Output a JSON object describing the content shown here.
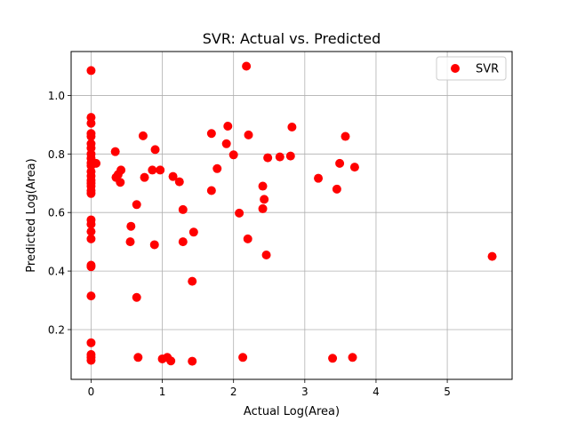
{
  "chart_data": {
    "type": "scatter",
    "title": "SVR: Actual vs. Predicted",
    "xlabel": "Actual Log(Area)",
    "ylabel": "Predicted Log(Area)",
    "xlim": [
      -0.28,
      5.91
    ],
    "ylim": [
      0.03,
      1.15
    ],
    "xticks": [
      0,
      1,
      2,
      3,
      4,
      5
    ],
    "xtick_labels": [
      "0",
      "1",
      "2",
      "3",
      "4",
      "5"
    ],
    "yticks": [
      0.2,
      0.4,
      0.6,
      0.8,
      1.0
    ],
    "ytick_labels": [
      "0.2",
      "0.4",
      "0.6",
      "0.8",
      "1.0"
    ],
    "grid": true,
    "legend": {
      "position": "top-right",
      "entries": [
        "SVR"
      ]
    },
    "series": [
      {
        "name": "SVR",
        "color": "#ff0000",
        "points": [
          [
            0,
            1.085
          ],
          [
            0,
            0.925
          ],
          [
            0,
            0.905
          ],
          [
            0,
            0.87
          ],
          [
            0,
            0.86
          ],
          [
            0,
            0.835
          ],
          [
            0,
            0.82
          ],
          [
            0,
            0.8
          ],
          [
            0,
            0.785
          ],
          [
            0,
            0.77
          ],
          [
            0,
            0.76
          ],
          [
            0,
            0.74
          ],
          [
            0,
            0.725
          ],
          [
            0,
            0.71
          ],
          [
            0,
            0.7
          ],
          [
            0,
            0.69
          ],
          [
            0,
            0.675
          ],
          [
            0,
            0.665
          ],
          [
            0,
            0.575
          ],
          [
            0,
            0.56
          ],
          [
            0,
            0.535
          ],
          [
            0,
            0.51
          ],
          [
            0,
            0.42
          ],
          [
            0,
            0.415
          ],
          [
            0,
            0.315
          ],
          [
            0,
            0.155
          ],
          [
            0,
            0.115
          ],
          [
            0,
            0.105
          ],
          [
            0,
            0.095
          ],
          [
            0.07,
            0.768
          ],
          [
            0.34,
            0.808
          ],
          [
            0.35,
            0.72
          ],
          [
            0.38,
            0.73
          ],
          [
            0.41,
            0.703
          ],
          [
            0.42,
            0.745
          ],
          [
            0.56,
            0.553
          ],
          [
            0.55,
            0.5
          ],
          [
            0.64,
            0.627
          ],
          [
            0.64,
            0.31
          ],
          [
            0.66,
            0.105
          ],
          [
            0.73,
            0.862
          ],
          [
            0.75,
            0.72
          ],
          [
            0.86,
            0.745
          ],
          [
            0.9,
            0.815
          ],
          [
            0.89,
            0.49
          ],
          [
            0.97,
            0.745
          ],
          [
            1.0,
            0.1
          ],
          [
            1.07,
            0.105
          ],
          [
            1.12,
            0.093
          ],
          [
            1.15,
            0.723
          ],
          [
            1.24,
            0.705
          ],
          [
            1.29,
            0.61
          ],
          [
            1.29,
            0.5
          ],
          [
            1.42,
            0.365
          ],
          [
            1.44,
            0.533
          ],
          [
            1.42,
            0.092
          ],
          [
            1.69,
            0.87
          ],
          [
            1.69,
            0.675
          ],
          [
            1.77,
            0.75
          ],
          [
            1.9,
            0.835
          ],
          [
            1.92,
            0.895
          ],
          [
            2.0,
            0.797
          ],
          [
            2.08,
            0.598
          ],
          [
            2.13,
            0.105
          ],
          [
            2.18,
            1.1
          ],
          [
            2.2,
            0.51
          ],
          [
            2.21,
            0.865
          ],
          [
            2.41,
            0.69
          ],
          [
            2.41,
            0.613
          ],
          [
            2.43,
            0.645
          ],
          [
            2.46,
            0.455
          ],
          [
            2.48,
            0.787
          ],
          [
            2.65,
            0.79
          ],
          [
            2.8,
            0.793
          ],
          [
            2.82,
            0.892
          ],
          [
            3.19,
            0.717
          ],
          [
            3.39,
            0.102
          ],
          [
            3.45,
            0.68
          ],
          [
            3.49,
            0.768
          ],
          [
            3.57,
            0.86
          ],
          [
            3.67,
            0.105
          ],
          [
            3.7,
            0.755
          ],
          [
            5.63,
            0.45
          ]
        ]
      }
    ]
  }
}
